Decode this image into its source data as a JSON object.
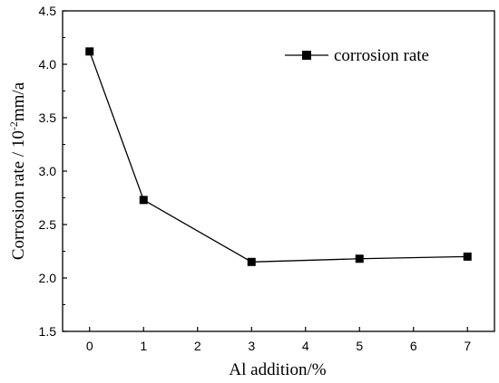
{
  "chart_data": {
    "type": "line",
    "xlabel": "Al addition/%",
    "ylabel_main": "Corrosion rate / 10",
    "ylabel_sup": "-2",
    "ylabel_unit": "mm/a",
    "x_ticks": [
      "0",
      "1",
      "2",
      "3",
      "4",
      "5",
      "6",
      "7"
    ],
    "y_ticks": [
      "1.5",
      "2.0",
      "2.5",
      "3.0",
      "3.5",
      "4.0",
      "4.5"
    ],
    "xlim": [
      -0.5,
      7.5
    ],
    "ylim": [
      1.5,
      4.5
    ],
    "grid": false,
    "legend_position": "top-right",
    "series": [
      {
        "name": "corrosion rate",
        "marker": "square",
        "color": "#000000",
        "x": [
          0,
          1,
          3,
          5,
          7
        ],
        "y": [
          4.12,
          2.73,
          2.15,
          2.18,
          2.2
        ]
      }
    ]
  }
}
